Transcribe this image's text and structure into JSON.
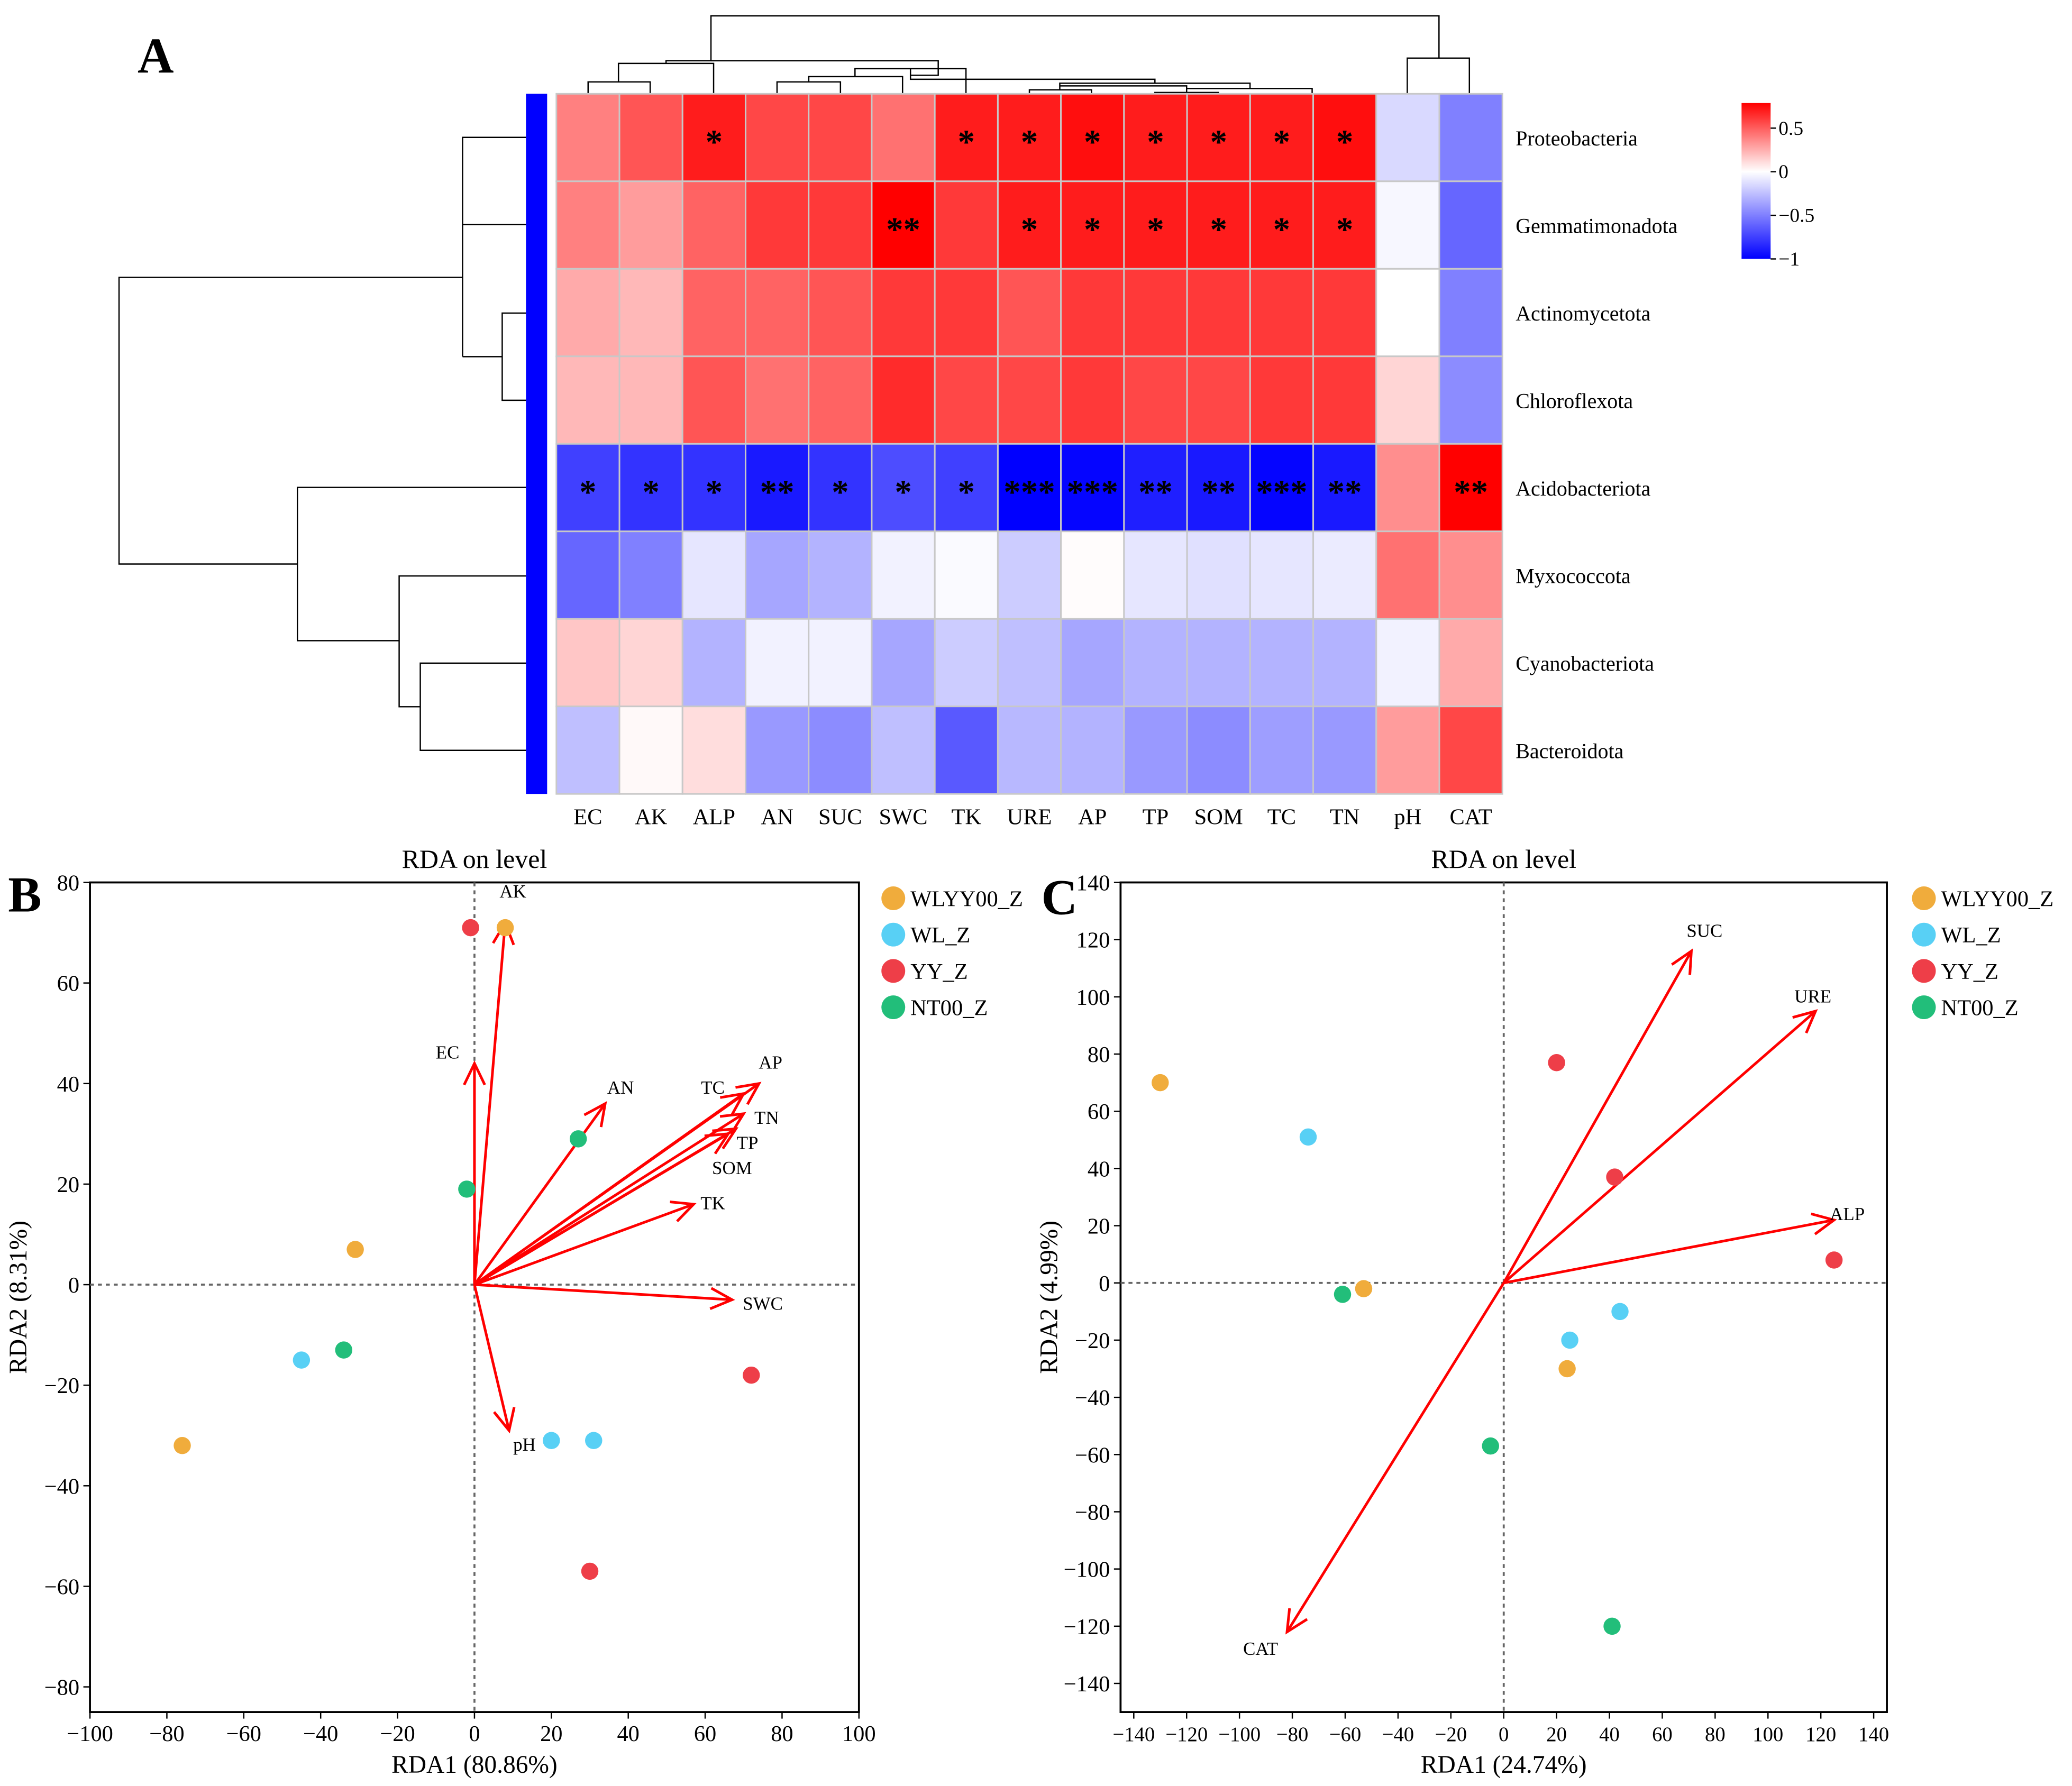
{
  "panel_labels": {
    "a": "A",
    "b": "B",
    "c": "C"
  },
  "colors": {
    "pos": "#ff0000",
    "neg": "#0000ff",
    "arrow": "#ff0000",
    "WLYY00_Z": "#f0ac3c",
    "WL_Z": "#58d0f5",
    "YY_Z": "#ee3e48",
    "NT00_Z": "#22be7a"
  },
  "chart_data": [
    {
      "type": "heatmap",
      "title": "",
      "rows": [
        "Proteobacteria",
        "Gemmatimonadota",
        "Actinomycetota",
        "Chloroflexota",
        "Acidobacteriota",
        "Myxococcota",
        "Cyanobacteriota",
        "Bacteroidota"
      ],
      "columns": [
        "EC",
        "AK",
        "ALP",
        "AN",
        "SUC",
        "SWC",
        "TK",
        "URE",
        "AP",
        "TP",
        "SOM",
        "TC",
        "TN",
        "pH",
        "CAT"
      ],
      "values": [
        [
          0.45,
          0.6,
          0.8,
          0.65,
          0.65,
          0.5,
          0.8,
          0.8,
          0.85,
          0.8,
          0.8,
          0.8,
          0.85,
          -0.15,
          -0.5
        ],
        [
          0.45,
          0.35,
          0.55,
          0.7,
          0.7,
          0.9,
          0.7,
          0.8,
          0.8,
          0.8,
          0.8,
          0.8,
          0.8,
          -0.03,
          -0.6
        ],
        [
          0.3,
          0.25,
          0.55,
          0.55,
          0.6,
          0.7,
          0.7,
          0.6,
          0.7,
          0.7,
          0.7,
          0.7,
          0.7,
          0.0,
          -0.5
        ],
        [
          0.25,
          0.25,
          0.6,
          0.5,
          0.55,
          0.75,
          0.65,
          0.65,
          0.7,
          0.65,
          0.65,
          0.7,
          0.7,
          0.15,
          -0.45
        ],
        [
          -0.75,
          -0.8,
          -0.8,
          -0.9,
          -0.8,
          -0.7,
          -0.75,
          -1.0,
          -0.98,
          -0.88,
          -0.9,
          -0.98,
          -0.9,
          0.4,
          0.9
        ],
        [
          -0.6,
          -0.5,
          -0.1,
          -0.35,
          -0.3,
          -0.05,
          -0.02,
          -0.2,
          0.01,
          -0.1,
          -0.12,
          -0.1,
          -0.08,
          0.5,
          0.4
        ],
        [
          0.2,
          0.15,
          -0.3,
          -0.05,
          -0.05,
          -0.35,
          -0.2,
          -0.25,
          -0.35,
          -0.3,
          -0.3,
          -0.3,
          -0.3,
          -0.05,
          0.3
        ],
        [
          -0.25,
          0.02,
          0.12,
          -0.4,
          -0.45,
          -0.25,
          -0.65,
          -0.28,
          -0.3,
          -0.4,
          -0.45,
          -0.38,
          -0.4,
          0.35,
          0.65
        ]
      ],
      "significance": [
        [
          "",
          "",
          "*",
          "",
          "",
          "",
          "*",
          "*",
          "*",
          "*",
          "*",
          "*",
          "*",
          "",
          ""
        ],
        [
          "",
          "",
          "",
          "",
          "",
          "**",
          "",
          "*",
          "*",
          "*",
          "*",
          "*",
          "*",
          "",
          ""
        ],
        [
          "",
          "",
          "",
          "",
          "",
          "",
          "",
          "",
          "",
          "",
          "",
          "",
          "",
          "",
          ""
        ],
        [
          "",
          "",
          "",
          "",
          "",
          "",
          "",
          "",
          "",
          "",
          "",
          "",
          "",
          "",
          ""
        ],
        [
          "*",
          "*",
          "*",
          "**",
          "*",
          "*",
          "*",
          "***",
          "***",
          "**",
          "**",
          "***",
          "**",
          "",
          "**"
        ],
        [
          "",
          "",
          "",
          "",
          "",
          "",
          "",
          "",
          "",
          "",
          "",
          "",
          "",
          "",
          ""
        ],
        [
          "",
          "",
          "",
          "",
          "",
          "",
          "",
          "",
          "",
          "",
          "",
          "",
          "",
          "",
          ""
        ],
        [
          "",
          "",
          "",
          "",
          "",
          "",
          "",
          "",
          "",
          "",
          "",
          "",
          "",
          "",
          ""
        ]
      ],
      "colorbar": {
        "ticks": [
          "0.5",
          "0",
          "−0.5",
          "−1"
        ],
        "tick_values": [
          0.5,
          0,
          -0.5,
          -1
        ],
        "range": [
          -1,
          0.8
        ]
      }
    },
    {
      "type": "scatter",
      "title": "RDA on level",
      "xlabel": "RDA1 (80.86%)",
      "ylabel": "RDA2 (8.31%)",
      "xlim": [
        -100,
        100
      ],
      "ylim": [
        -85,
        80
      ],
      "xticks": [
        "−100",
        "−80",
        "−60",
        "−40",
        "−20",
        "0",
        "20",
        "40",
        "60",
        "80",
        "100"
      ],
      "xtick_values": [
        -100,
        -80,
        -60,
        -40,
        -20,
        0,
        20,
        40,
        60,
        80,
        100
      ],
      "yticks": [
        "−80",
        "−60",
        "−40",
        "−20",
        "0",
        "20",
        "40",
        "60",
        "80"
      ],
      "ytick_values": [
        -80,
        -60,
        -40,
        -20,
        0,
        20,
        40,
        60,
        80
      ],
      "legend": [
        "WLYY00_Z",
        "WL_Z",
        "YY_Z",
        "NT00_Z"
      ],
      "points": [
        {
          "group": "WLYY00_Z",
          "x": -76,
          "y": -32
        },
        {
          "group": "WLYY00_Z",
          "x": -31,
          "y": 7
        },
        {
          "group": "WLYY00_Z",
          "x": 8,
          "y": 71
        },
        {
          "group": "WL_Z",
          "x": -45,
          "y": -15
        },
        {
          "group": "WL_Z",
          "x": 20,
          "y": -31
        },
        {
          "group": "WL_Z",
          "x": 31,
          "y": -31
        },
        {
          "group": "YY_Z",
          "x": -1,
          "y": 71
        },
        {
          "group": "YY_Z",
          "x": 72,
          "y": -18
        },
        {
          "group": "YY_Z",
          "x": 30,
          "y": -57
        },
        {
          "group": "NT00_Z",
          "x": -34,
          "y": -13
        },
        {
          "group": "NT00_Z",
          "x": -2,
          "y": 19
        },
        {
          "group": "NT00_Z",
          "x": 27,
          "y": 29
        }
      ],
      "arrows": [
        {
          "label": "AK",
          "x": 8,
          "y": 72,
          "lx": 10,
          "ly": 77
        },
        {
          "label": "EC",
          "x": 0,
          "y": 44,
          "lx": -7,
          "ly": 45
        },
        {
          "label": "AN",
          "x": 34,
          "y": 36,
          "lx": 38,
          "ly": 38
        },
        {
          "label": "AP",
          "x": 74,
          "y": 40,
          "lx": 77,
          "ly": 43
        },
        {
          "label": "TC",
          "x": 70,
          "y": 38,
          "lx": 62,
          "ly": 38
        },
        {
          "label": "TN",
          "x": 70,
          "y": 34,
          "lx": 76,
          "ly": 32
        },
        {
          "label": "TP",
          "x": 68,
          "y": 31,
          "lx": 71,
          "ly": 27
        },
        {
          "label": "SOM",
          "x": 66,
          "y": 30,
          "lx": 67,
          "ly": 22
        },
        {
          "label": "TK",
          "x": 57,
          "y": 16,
          "lx": 62,
          "ly": 15
        },
        {
          "label": "SWC",
          "x": 67,
          "y": -3,
          "lx": 75,
          "ly": -5
        },
        {
          "label": "pH",
          "x": 9,
          "y": -29,
          "lx": 13,
          "ly": -33
        }
      ]
    },
    {
      "type": "scatter",
      "title": "RDA on level",
      "xlabel": "RDA1 (24.74%)",
      "ylabel": "RDA2 (4.99%)",
      "xlim": [
        -145,
        145
      ],
      "ylim": [
        -150,
        140
      ],
      "xticks": [
        "−140",
        "−120",
        "−100",
        "−80",
        "−60",
        "−40",
        "−20",
        "0",
        "20",
        "40",
        "60",
        "80",
        "100",
        "120",
        "140"
      ],
      "xtick_values": [
        -140,
        -120,
        -100,
        -80,
        -60,
        -40,
        -20,
        0,
        20,
        40,
        60,
        80,
        100,
        120,
        140
      ],
      "yticks": [
        "−140",
        "−120",
        "−100",
        "−80",
        "−60",
        "−40",
        "−20",
        "0",
        "20",
        "40",
        "60",
        "80",
        "100",
        "120",
        "140"
      ],
      "ytick_values": [
        -140,
        -120,
        -100,
        -80,
        -60,
        -40,
        -20,
        0,
        20,
        40,
        60,
        80,
        100,
        120,
        140
      ],
      "legend": [
        "WLYY00_Z",
        "WL_Z",
        "YY_Z",
        "NT00_Z"
      ],
      "points": [
        {
          "group": "WLYY00_Z",
          "x": -130,
          "y": 70
        },
        {
          "group": "WLYY00_Z",
          "x": -53,
          "y": -2
        },
        {
          "group": "WLYY00_Z",
          "x": 24,
          "y": -30
        },
        {
          "group": "WL_Z",
          "x": -74,
          "y": 51
        },
        {
          "group": "WL_Z",
          "x": 25,
          "y": -20
        },
        {
          "group": "WL_Z",
          "x": 44,
          "y": -10
        },
        {
          "group": "YY_Z",
          "x": 20,
          "y": 77
        },
        {
          "group": "YY_Z",
          "x": 42,
          "y": 37
        },
        {
          "group": "YY_Z",
          "x": 125,
          "y": 8
        },
        {
          "group": "NT00_Z",
          "x": -61,
          "y": -4
        },
        {
          "group": "NT00_Z",
          "x": -5,
          "y": -57
        },
        {
          "group": "NT00_Z",
          "x": 41,
          "y": -120
        }
      ],
      "arrows": [
        {
          "label": "SUC",
          "x": 71,
          "y": 116,
          "lx": 76,
          "ly": 121
        },
        {
          "label": "URE",
          "x": 118,
          "y": 95,
          "lx": 117,
          "ly": 98
        },
        {
          "label": "ALP",
          "x": 125,
          "y": 22,
          "lx": 130,
          "ly": 22
        },
        {
          "label": "CAT",
          "x": -82,
          "y": -122,
          "lx": -92,
          "ly": -130
        }
      ]
    }
  ]
}
